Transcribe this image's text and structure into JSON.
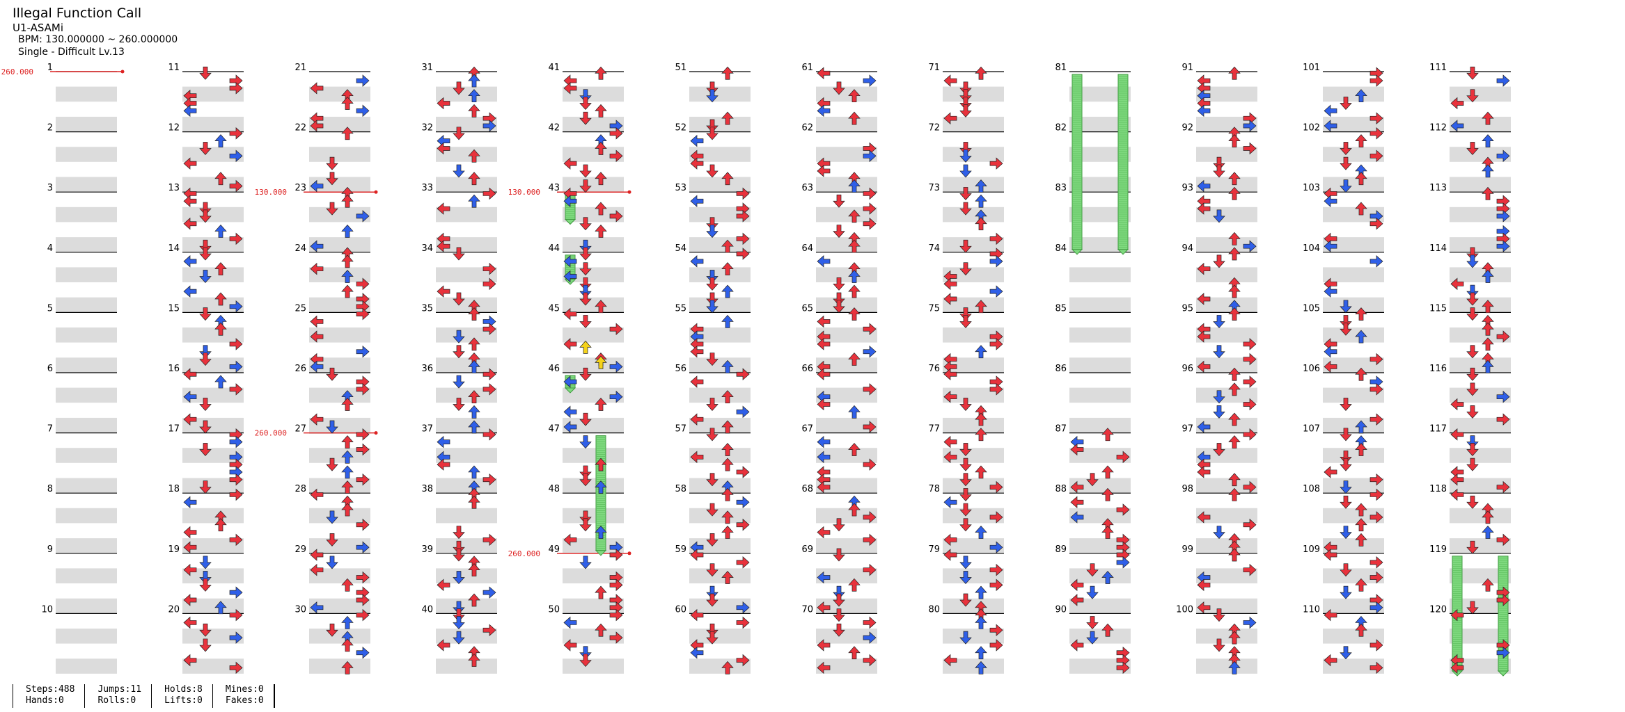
{
  "song": {
    "title": "Illegal Function Call",
    "artist": "U1-ASAMi",
    "bpm": "BPM: 130.000000 ~ 260.000000",
    "difficulty": "Single - Difficult Lv.13"
  },
  "chart_data": {
    "type": "step_chart",
    "columns": 12,
    "measures_per_column": 10,
    "measure_count": 120,
    "lanes": [
      "left",
      "down",
      "up",
      "right"
    ],
    "colors": {
      "quarter": "#e8323c",
      "eighth": "#2f5fe8",
      "sixteenth": "#f4d21a",
      "hold": "#7fd97f",
      "bpm_line": "#dd2222",
      "rows": "#dcdcdc"
    },
    "bpm_changes": [
      {
        "measure": 1,
        "label": "260.000"
      },
      {
        "measure": 23,
        "label": "130.000"
      },
      {
        "measure": 27,
        "label": "260.000"
      },
      {
        "measure": 43,
        "label": "130.000"
      },
      {
        "measure": 49,
        "label": "260.000"
      }
    ],
    "holds": [
      {
        "lane": 0,
        "start": 43.0,
        "end": 43.5
      },
      {
        "lane": 0,
        "start": 44.0,
        "end": 44.5
      },
      {
        "lane": 0,
        "start": 46.0,
        "end": 46.3
      },
      {
        "lane": 2,
        "start": 47.0,
        "end": 49.0
      },
      {
        "lane": 0,
        "start": 81.0,
        "end": 84.0
      },
      {
        "lane": 3,
        "start": 81.0,
        "end": 84.0
      },
      {
        "lane": 0,
        "start": 119.0,
        "end": 121.0
      },
      {
        "lane": 3,
        "start": 119.0,
        "end": 121.0
      }
    ]
  },
  "stats": {
    "steps": "Steps:488",
    "hands": "Hands:0",
    "jumps": "Jumps:11",
    "rolls": "Rolls:0",
    "holds": "Holds:8",
    "lifts": "Lifts:0",
    "mines": "Mines:0",
    "fakes": "Fakes:0"
  }
}
